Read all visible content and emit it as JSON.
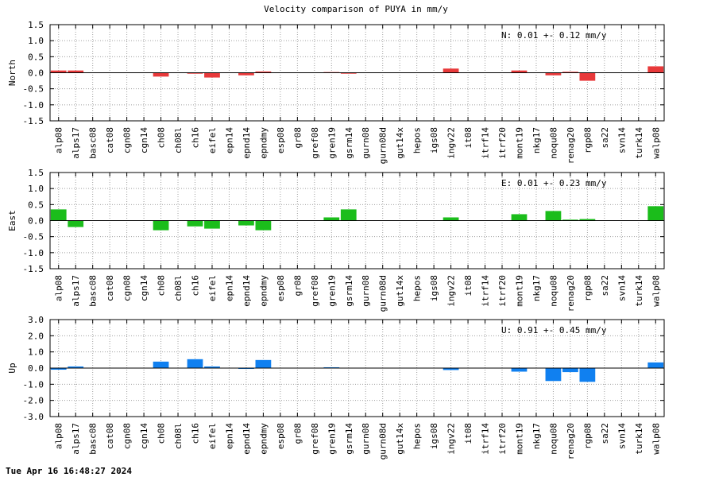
{
  "title": "Velocity comparison of PUYA in mm/y",
  "timestamp": "Tue Apr 16 16:48:27 2024",
  "chart_data": [
    {
      "type": "bar",
      "ylabel": "North",
      "ylim": [
        -1.5,
        1.5
      ],
      "yticks": [
        "1.5",
        "1.0",
        "0.5",
        "0.0",
        "-0.5",
        "-1.0",
        "-1.5"
      ],
      "grid": true,
      "color": "#e8393a",
      "annotation": "N:   0.01 +-  0.12 mm/y",
      "categories": [
        "alp08",
        "alps17",
        "basc08",
        "cat08",
        "cgn08",
        "cgn14",
        "ch08",
        "ch08l",
        "ch16",
        "eifel",
        "epn14",
        "epnd14",
        "epndmy",
        "esp08",
        "gr08",
        "gref08",
        "gren19",
        "gsrm14",
        "gurn08",
        "gurn08d",
        "gut14x",
        "hepos",
        "igs08",
        "ingv22",
        "it08",
        "itrf14",
        "itrf20",
        "mont19",
        "nkg17",
        "noqu08",
        "renag20",
        "rgp08",
        "sa22",
        "svn14",
        "turk14",
        "walp08"
      ],
      "values": [
        0.07,
        0.07,
        0,
        0,
        0,
        0,
        -0.12,
        0,
        -0.03,
        -0.15,
        0,
        -0.08,
        0.04,
        0,
        0,
        0,
        0.02,
        -0.03,
        0,
        0,
        0,
        0,
        0,
        0.13,
        0,
        0,
        0,
        0.07,
        0,
        -0.08,
        0.03,
        -0.25,
        0,
        0,
        0,
        0.2
      ]
    },
    {
      "type": "bar",
      "ylabel": "East",
      "ylim": [
        -1.5,
        1.5
      ],
      "yticks": [
        "1.5",
        "1.0",
        "0.5",
        "0.0",
        "-0.5",
        "-1.0",
        "-1.5"
      ],
      "grid": true,
      "color": "#1bbd1b",
      "annotation": "E:   0.01 +-  0.23 mm/y",
      "categories": [
        "alp08",
        "alps17",
        "basc08",
        "cat08",
        "cgn08",
        "cgn14",
        "ch08",
        "ch08l",
        "ch16",
        "eifel",
        "epn14",
        "epnd14",
        "epndmy",
        "esp08",
        "gr08",
        "gref08",
        "gren19",
        "gsrm14",
        "gurn08",
        "gurn08d",
        "gut14x",
        "hepos",
        "igs08",
        "ingv22",
        "it08",
        "itrf14",
        "itrf20",
        "mont19",
        "nkg17",
        "noqu08",
        "renag20",
        "rgp08",
        "sa22",
        "svn14",
        "turk14",
        "walp08"
      ],
      "values": [
        0.35,
        -0.2,
        0,
        0,
        0,
        0,
        -0.3,
        0,
        -0.18,
        -0.25,
        0,
        -0.15,
        -0.3,
        0,
        0,
        0,
        0.1,
        0.35,
        0,
        0,
        0,
        0,
        0,
        0.1,
        0,
        0,
        0,
        0.2,
        0,
        0.3,
        0.03,
        0.05,
        0,
        0,
        0,
        0.45
      ]
    },
    {
      "type": "bar",
      "ylabel": "Up",
      "ylim": [
        -3.0,
        3.0
      ],
      "yticks": [
        "3.0",
        "2.0",
        "1.0",
        "0.0",
        "-1.0",
        "-2.0",
        "-3.0"
      ],
      "grid": true,
      "color": "#1080f0",
      "annotation": "U:   0.91 +-  0.45 mm/y",
      "categories": [
        "alp08",
        "alps17",
        "basc08",
        "cat08",
        "cgn08",
        "cgn14",
        "ch08",
        "ch08l",
        "ch16",
        "eifel",
        "epn14",
        "epnd14",
        "epndmy",
        "esp08",
        "gr08",
        "gref08",
        "gren19",
        "gsrm14",
        "gurn08",
        "gurn08d",
        "gut14x",
        "hepos",
        "igs08",
        "ingv22",
        "it08",
        "itrf14",
        "itrf20",
        "mont19",
        "nkg17",
        "noqu08",
        "renag20",
        "rgp08",
        "sa22",
        "svn14",
        "turk14",
        "walp08"
      ],
      "values": [
        -0.1,
        0.1,
        0,
        0,
        0,
        0,
        0.4,
        0,
        0.55,
        0.1,
        0,
        -0.05,
        0.5,
        0,
        0,
        0,
        0.05,
        0,
        0,
        0,
        0,
        0,
        0,
        -0.12,
        0,
        0,
        0,
        -0.22,
        0,
        -0.8,
        -0.25,
        -0.85,
        0,
        0,
        0,
        0.35
      ]
    }
  ]
}
